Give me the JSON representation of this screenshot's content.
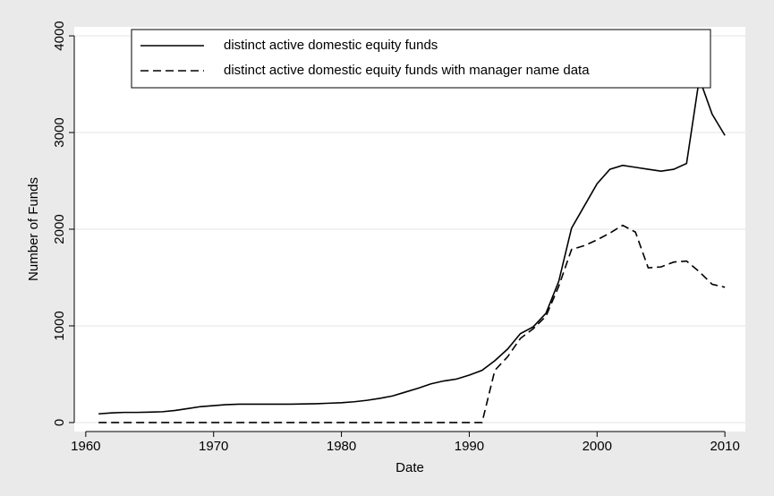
{
  "chart_data": {
    "type": "line",
    "xlabel": "Date",
    "ylabel": "Number of Funds",
    "x": [
      1961,
      1962,
      1963,
      1964,
      1965,
      1966,
      1967,
      1968,
      1969,
      1970,
      1971,
      1972,
      1973,
      1974,
      1975,
      1976,
      1977,
      1978,
      1979,
      1980,
      1981,
      1982,
      1983,
      1984,
      1985,
      1986,
      1987,
      1988,
      1989,
      1990,
      1991,
      1992,
      1993,
      1994,
      1995,
      1996,
      1997,
      1998,
      1999,
      2000,
      2001,
      2002,
      2003,
      2004,
      2005,
      2006,
      2007,
      2008,
      2009,
      2010
    ],
    "series": [
      {
        "name": "distinct active domestic equity funds",
        "color": "#000000",
        "dash": "solid",
        "values": [
          90,
          100,
          105,
          105,
          108,
          112,
          125,
          145,
          165,
          175,
          185,
          190,
          190,
          190,
          190,
          190,
          192,
          195,
          200,
          205,
          215,
          230,
          250,
          275,
          315,
          355,
          400,
          430,
          450,
          490,
          540,
          640,
          760,
          920,
          990,
          1130,
          1460,
          2010,
          2240,
          2470,
          2620,
          2660,
          2640,
          2620,
          2600,
          2620,
          2680,
          3560,
          3190,
          2970
        ]
      },
      {
        "name": "distinct active domestic equity funds with manager name data",
        "color": "#000000",
        "dash": "dashed",
        "values": [
          0,
          0,
          0,
          0,
          0,
          0,
          0,
          0,
          0,
          0,
          0,
          0,
          0,
          0,
          0,
          0,
          0,
          0,
          0,
          0,
          0,
          0,
          0,
          0,
          0,
          0,
          0,
          0,
          0,
          0,
          0,
          540,
          680,
          870,
          970,
          1100,
          1410,
          1790,
          1830,
          1890,
          1960,
          2040,
          1970,
          1600,
          1610,
          1660,
          1670,
          1560,
          1430,
          1400
        ]
      }
    ],
    "xlim": [
      1959.1,
      2011.6
    ],
    "xticks": [
      1960,
      1970,
      1980,
      1990,
      2000,
      2010
    ],
    "ylim": [
      -93,
      4093
    ],
    "yticks": [
      0,
      1000,
      2000,
      3000,
      4000
    ],
    "grid": true,
    "legend": "top"
  }
}
